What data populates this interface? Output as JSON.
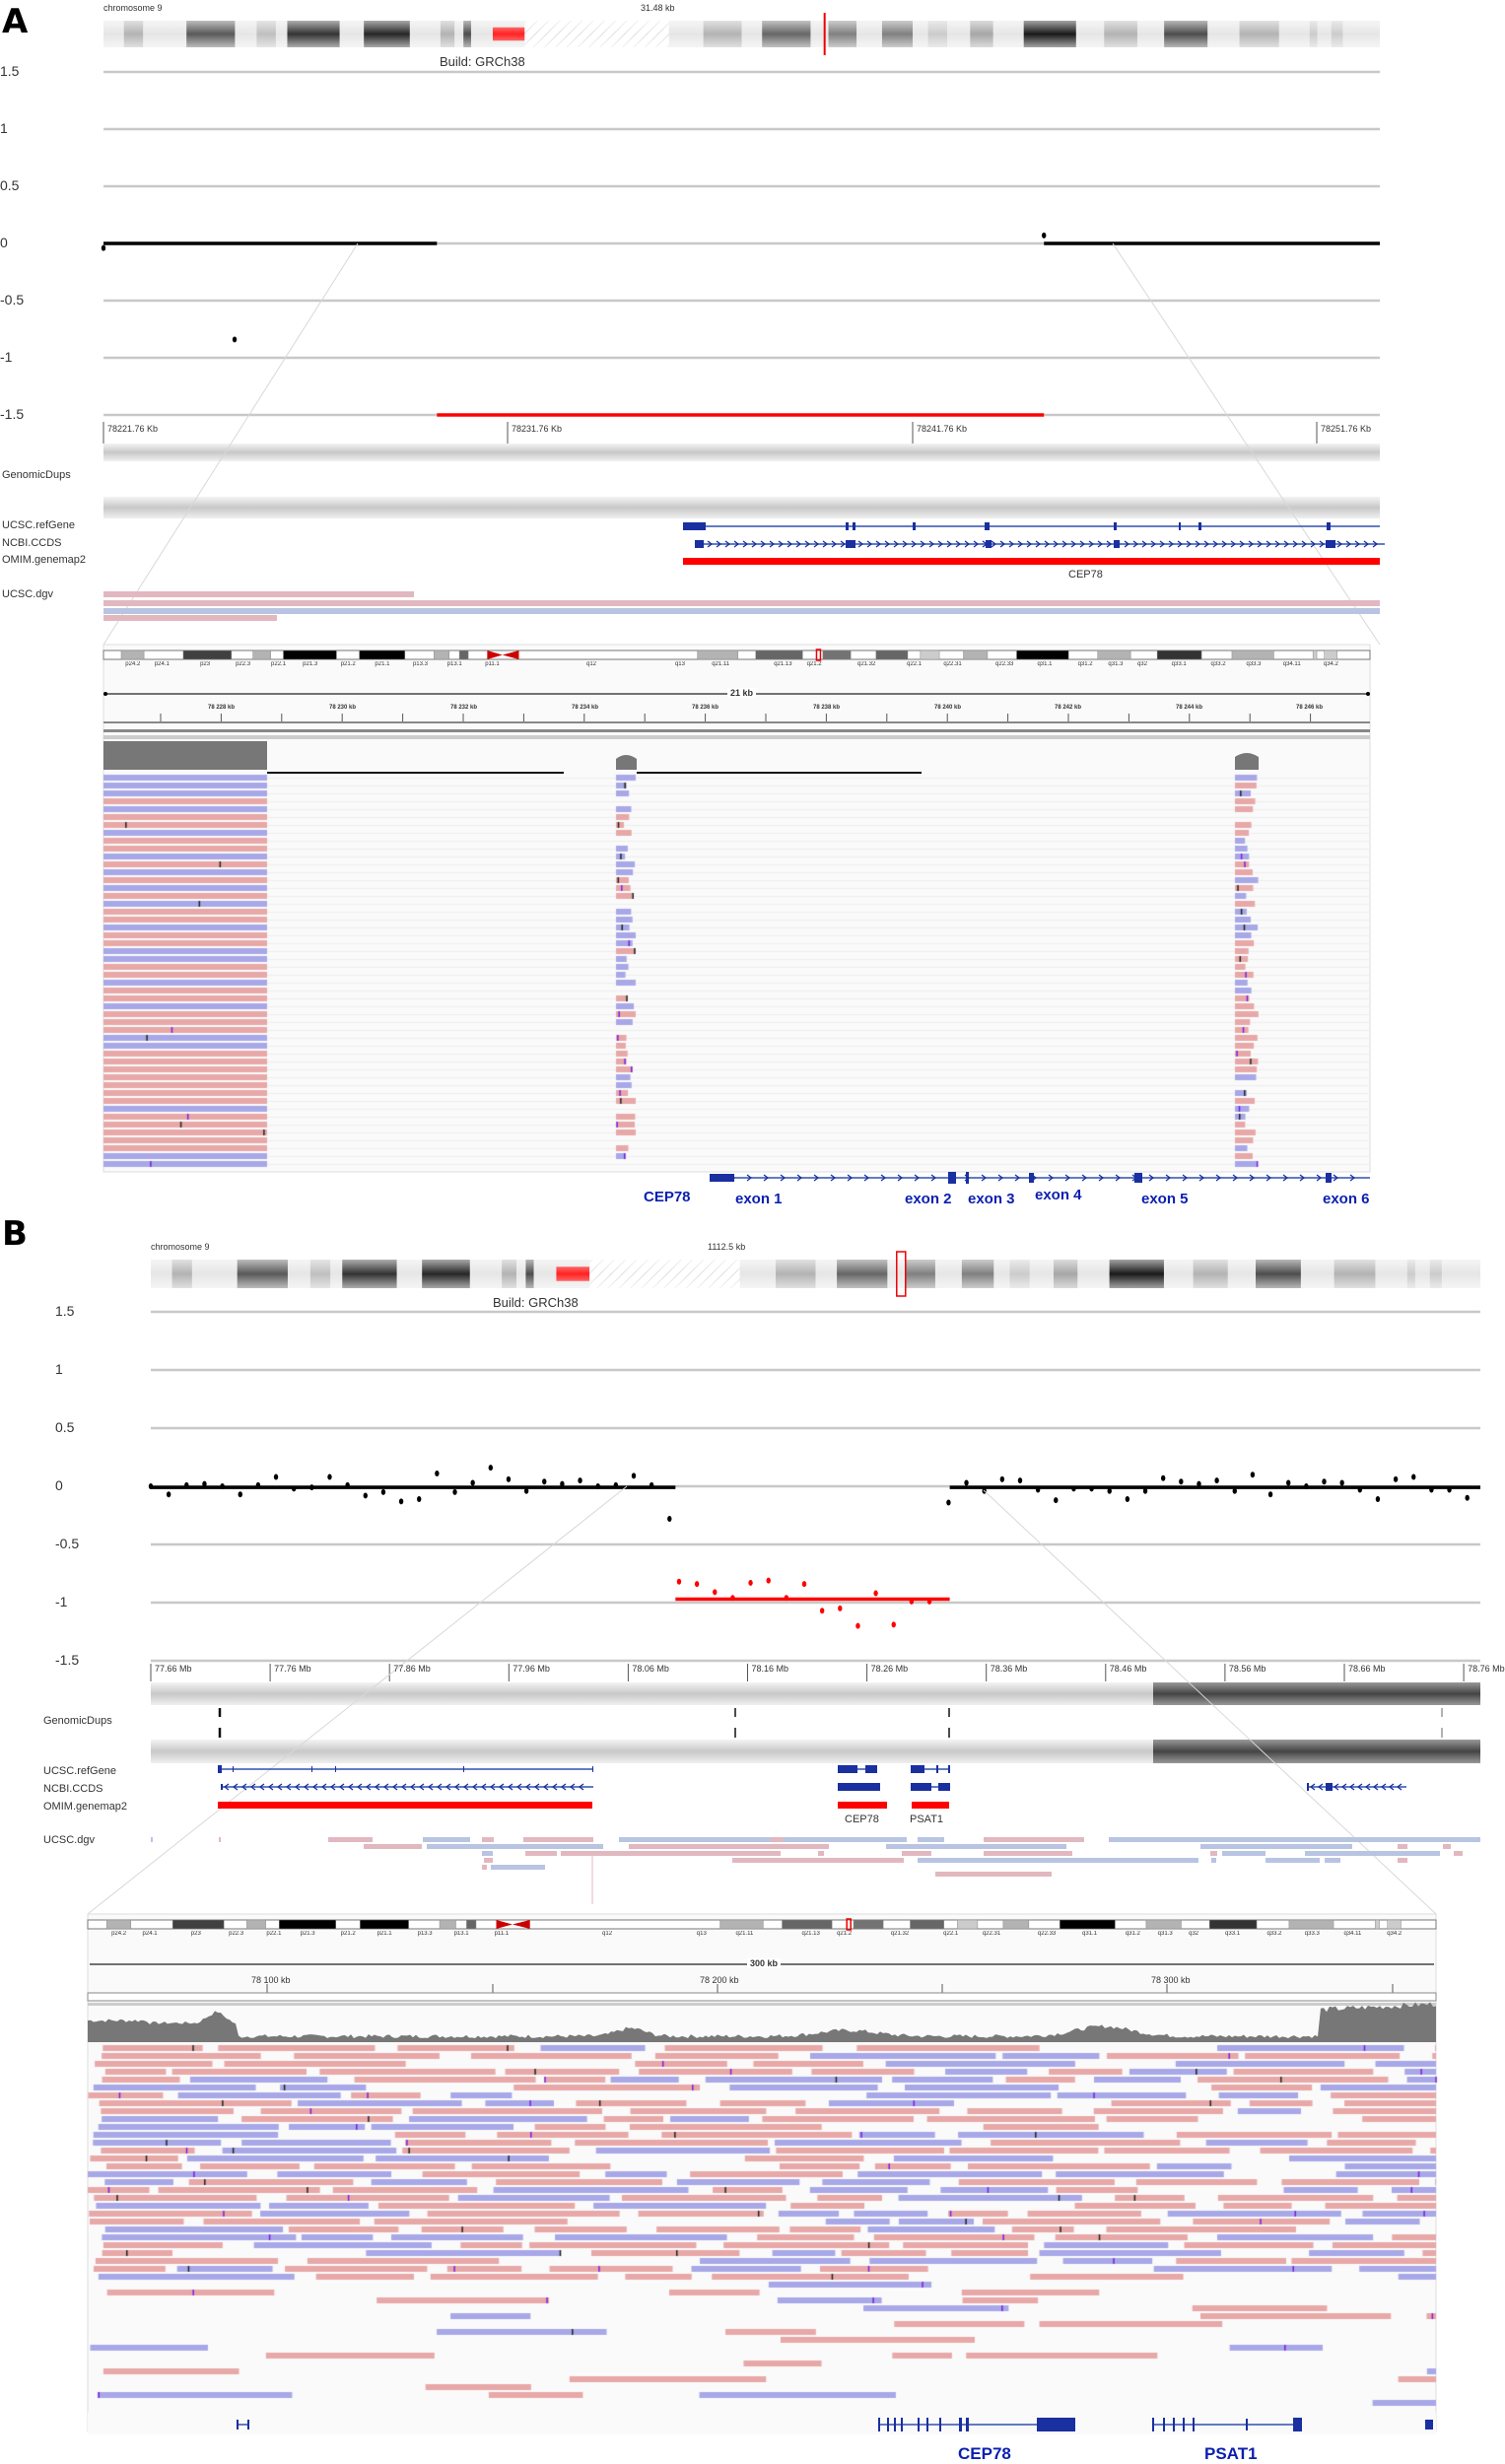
{
  "panels": [
    {
      "letter": "A",
      "chromosome_label": "chromosome 9",
      "span_label": "31.48 kb",
      "build_label": "Build: GRCh38",
      "tracks": {
        "genomic_dups": "GenomicDups",
        "refgene": "UCSC.refGene",
        "ccds": "NCBI.CCDS",
        "omim": "OMIM.genemap2",
        "dgv": "UCSC.dgv"
      },
      "omim_genes": [
        "CEP78"
      ],
      "igv": {
        "span": "21 kb",
        "ruler_labels": [
          "78 228 kb",
          "78 230 kb",
          "78 232 kb",
          "78 234 kb",
          "78 236 kb",
          "78 238 kb",
          "78 240 kb",
          "78 242 kb",
          "78 244 kb",
          "78 246 kb"
        ],
        "gene_labels": [
          "CEP78",
          "exon 1",
          "exon 2",
          "exon 3",
          "exon 4",
          "exon 5",
          "exon 6"
        ]
      }
    },
    {
      "letter": "B",
      "chromosome_label": "chromosome 9",
      "span_label": "1112.5 kb",
      "build_label": "Build: GRCh38",
      "tracks": {
        "genomic_dups": "GenomicDups",
        "refgene": "UCSC.refGene",
        "ccds": "NCBI.CCDS",
        "omim": "OMIM.genemap2",
        "dgv": "UCSC.dgv"
      },
      "omim_genes": [
        "CEP78",
        "PSAT1"
      ],
      "igv": {
        "span": "300 kb",
        "ruler_labels": [
          "78 100 kb",
          "78 200 kb",
          "78 300 kb"
        ],
        "gene_labels": [
          "CEP78",
          "PSAT1"
        ]
      }
    }
  ],
  "ideogram_bands": [
    "p24.2",
    "p24.1",
    "p23",
    "p22.3",
    "p22.1",
    "p21.3",
    "p21.2",
    "p21.1",
    "p13.3",
    "p13.1",
    "p11.1",
    "q12",
    "q13",
    "q21.11",
    "q21.13",
    "q21.2",
    "q21.32",
    "q22.1",
    "q22.31",
    "q22.33",
    "q31.1",
    "q31.2",
    "q31.3",
    "q32",
    "q33.1",
    "q33.2",
    "q33.3",
    "q34.11",
    "q34.2"
  ],
  "colors": {
    "normal": "#000000",
    "loss": "#ff0000",
    "forward_read": "#e8a8a8",
    "reverse_read": "#a8a8e8",
    "gene": "#1a2fa0"
  },
  "chart_data": [
    {
      "type": "scatter",
      "panel": "A",
      "x_unit": "Kb",
      "xlim": [
        78221.76,
        78253.3
      ],
      "ylim": [
        -1.5,
        1.5
      ],
      "y_ticks": [
        "1.5",
        "1",
        "0.5",
        "0",
        "-0.5",
        "-1",
        "-1.5"
      ],
      "x_tick_labels": [
        "78221.76 Kb",
        "78231.76 Kb",
        "78241.76 Kb",
        "78251.76 Kb"
      ],
      "grid": true,
      "points": [
        [
          78221.76,
          -0.04
        ],
        [
          78225.0,
          -0.84
        ],
        [
          78245.0,
          0.07
        ]
      ],
      "segments": [
        {
          "start": 78221.76,
          "end": 78230.0,
          "value": 0.0,
          "color": "normal"
        },
        {
          "start": 78230.0,
          "end": 78245.0,
          "value": -1.5,
          "color": "loss"
        },
        {
          "start": 78245.0,
          "end": 78253.3,
          "value": 0.0,
          "color": "normal"
        }
      ]
    },
    {
      "type": "scatter",
      "panel": "B",
      "x_unit": "Mb",
      "xlim": [
        77.66,
        78.775
      ],
      "ylim": [
        -1.5,
        1.5
      ],
      "y_ticks": [
        "1.5",
        "1",
        "0.5",
        "0",
        "-0.5",
        "-1",
        "-1.5"
      ],
      "x_tick_labels": [
        "77.66 Mb",
        "77.76 Mb",
        "77.86 Mb",
        "77.96 Mb",
        "78.06 Mb",
        "78.16 Mb",
        "78.26 Mb",
        "78.36 Mb",
        "78.46 Mb",
        "78.56 Mb",
        "78.66 Mb",
        "78.76 Mb"
      ],
      "grid": true,
      "points": [
        [
          77.66,
          0.0
        ],
        [
          77.675,
          -0.07
        ],
        [
          77.69,
          0.01
        ],
        [
          77.705,
          0.02
        ],
        [
          77.72,
          0.0
        ],
        [
          77.735,
          -0.07
        ],
        [
          77.75,
          0.01
        ],
        [
          77.765,
          0.08
        ],
        [
          77.78,
          -0.02
        ],
        [
          77.795,
          -0.01
        ],
        [
          77.81,
          0.08
        ],
        [
          77.825,
          0.01
        ],
        [
          77.84,
          -0.08
        ],
        [
          77.855,
          -0.05
        ],
        [
          77.87,
          -0.13
        ],
        [
          77.885,
          -0.11
        ],
        [
          77.9,
          0.11
        ],
        [
          77.915,
          -0.05
        ],
        [
          77.93,
          0.03
        ],
        [
          77.945,
          0.16
        ],
        [
          77.96,
          0.06
        ],
        [
          77.975,
          -0.04
        ],
        [
          77.99,
          0.04
        ],
        [
          78.005,
          0.02
        ],
        [
          78.02,
          0.05
        ],
        [
          78.035,
          0.0
        ],
        [
          78.05,
          0.01
        ],
        [
          78.065,
          0.09
        ],
        [
          78.08,
          0.01
        ],
        [
          78.095,
          -0.28
        ]
      ],
      "loss_points": [
        [
          78.103,
          -0.82
        ],
        [
          78.118,
          -0.84
        ],
        [
          78.133,
          -0.91
        ],
        [
          78.148,
          -0.96
        ],
        [
          78.163,
          -0.83
        ],
        [
          78.178,
          -0.81
        ],
        [
          78.193,
          -0.96
        ],
        [
          78.208,
          -0.84
        ],
        [
          78.223,
          -1.07
        ],
        [
          78.238,
          -1.05
        ],
        [
          78.253,
          -1.2
        ],
        [
          78.268,
          -0.92
        ],
        [
          78.283,
          -1.19
        ],
        [
          78.298,
          -0.99
        ],
        [
          78.313,
          -0.99
        ]
      ],
      "points_right": [
        [
          78.329,
          -0.14
        ],
        [
          78.344,
          0.03
        ],
        [
          78.359,
          -0.04
        ],
        [
          78.374,
          0.06
        ],
        [
          78.389,
          0.05
        ],
        [
          78.404,
          -0.03
        ],
        [
          78.419,
          -0.12
        ],
        [
          78.434,
          -0.02
        ],
        [
          78.449,
          -0.02
        ],
        [
          78.464,
          -0.04
        ],
        [
          78.479,
          -0.11
        ],
        [
          78.494,
          -0.04
        ],
        [
          78.509,
          0.07
        ],
        [
          78.524,
          0.04
        ],
        [
          78.539,
          0.02
        ],
        [
          78.554,
          0.05
        ],
        [
          78.569,
          -0.04
        ],
        [
          78.584,
          0.1
        ],
        [
          78.599,
          -0.07
        ],
        [
          78.614,
          0.03
        ],
        [
          78.629,
          0.0
        ],
        [
          78.644,
          0.04
        ],
        [
          78.659,
          0.03
        ],
        [
          78.674,
          -0.03
        ],
        [
          78.689,
          -0.11
        ],
        [
          78.704,
          0.06
        ],
        [
          78.719,
          0.08
        ],
        [
          78.734,
          -0.03
        ],
        [
          78.749,
          -0.03
        ],
        [
          78.764,
          -0.1
        ]
      ],
      "segments": [
        {
          "start": 77.66,
          "end": 78.1,
          "value": -0.01,
          "color": "normal"
        },
        {
          "start": 78.1,
          "end": 78.33,
          "value": -0.97,
          "color": "loss"
        },
        {
          "start": 78.33,
          "end": 78.775,
          "value": -0.01,
          "color": "normal"
        }
      ]
    }
  ]
}
